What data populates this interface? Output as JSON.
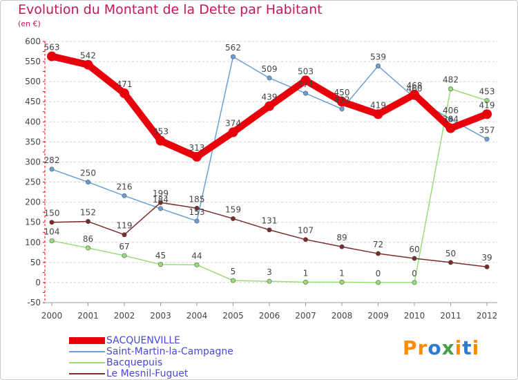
{
  "header": {
    "title": "Evolution du Montant de la Dette par Habitant",
    "subtitle": "(en €)"
  },
  "logo": {
    "text": "Proxiti",
    "colors": [
      "#ff8c00",
      "#ff8c00",
      "#2e7bcf",
      "#43a047",
      "#ff8c00",
      "#2e7bcf",
      "#ff8c00"
    ]
  },
  "chart_data": {
    "type": "line",
    "title": "Evolution du Montant de la Dette par Habitant",
    "ylabel": "(en €)",
    "xlabel": "",
    "ylim": [
      -50,
      600
    ],
    "yticks": [
      -50,
      0,
      50,
      100,
      150,
      200,
      250,
      300,
      350,
      400,
      450,
      500,
      550,
      600
    ],
    "grid": "horizontal",
    "legend_position": "bottom-left",
    "x": [
      "2000",
      "2001",
      "2002",
      "2003",
      "2004",
      "2005",
      "2006",
      "2007",
      "2008",
      "2009",
      "2010",
      "2011",
      "2012"
    ],
    "series": [
      {
        "name": "SACQUENVILLE",
        "color": "#e8000b",
        "values": [
          563,
          542,
          471,
          353,
          313,
          374,
          439,
          503,
          450,
          419,
          468,
          384,
          419
        ]
      },
      {
        "name": "Saint-Martin-la-Campagne",
        "color": "#6a9fd4",
        "values": [
          282,
          250,
          216,
          184,
          153,
          562,
          509,
          471,
          432,
          539,
          460,
          406,
          357
        ]
      },
      {
        "name": "Bacquepuis",
        "color": "#99dd77",
        "values": [
          104,
          86,
          67,
          45,
          44,
          5,
          3,
          1,
          1,
          0,
          0,
          482,
          453
        ]
      },
      {
        "name": "Le Mesnil-Fuguet",
        "color": "#7a2a2a",
        "values": [
          150,
          152,
          119,
          199,
          185,
          159,
          131,
          107,
          89,
          72,
          60,
          50,
          39
        ]
      }
    ]
  }
}
